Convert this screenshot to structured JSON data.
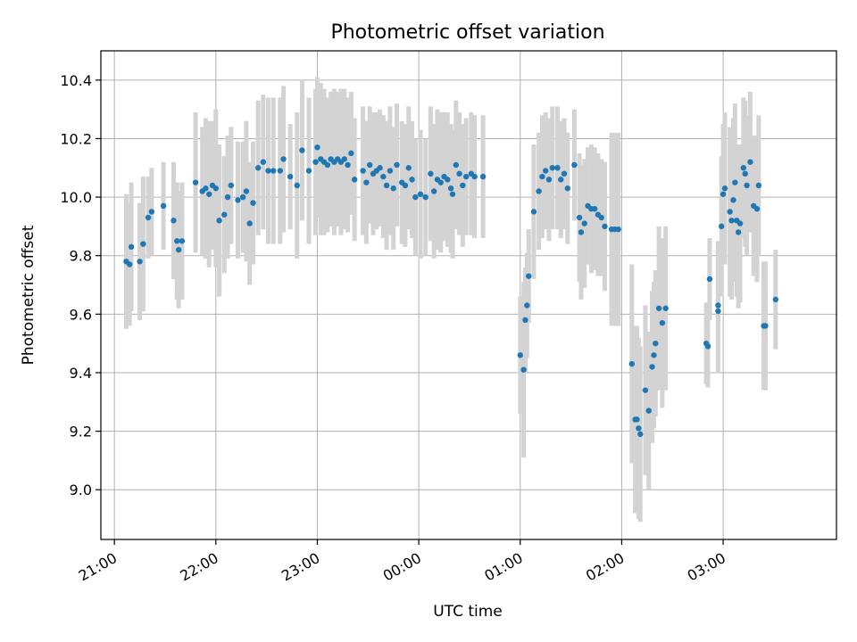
{
  "chart_data": {
    "type": "scatter",
    "title": "Photometric offset variation",
    "xlabel": "UTC time",
    "ylabel": "Photometric offset",
    "x_axis": {
      "kind": "time",
      "range": [
        "20:52",
        "28:07"
      ],
      "ticks": [
        {
          "t": "21:00",
          "label": "21:00"
        },
        {
          "t": "22:00",
          "label": "22:00"
        },
        {
          "t": "23:00",
          "label": "23:00"
        },
        {
          "t": "24:00",
          "label": "00:00"
        },
        {
          "t": "25:00",
          "label": "01:00"
        },
        {
          "t": "26:00",
          "label": "02:00"
        },
        {
          "t": "27:00",
          "label": "03:00"
        }
      ]
    },
    "y_axis": {
      "range": [
        8.83,
        10.5
      ],
      "ticks": [
        9.0,
        9.2,
        9.4,
        9.6,
        9.8,
        10.0,
        10.2,
        10.4
      ],
      "tick_labels": [
        "9.0",
        "9.2",
        "9.4",
        "9.6",
        "9.8",
        "10.0",
        "10.2",
        "10.4"
      ]
    },
    "grid": true,
    "marker_color": "#1f77b4",
    "errorbar_color": "#d3d3d3",
    "note_x_format": "x values are UTC times; hours past midnight are written as 24:xx, 25:xx, 26:xx, 27:xx",
    "series": [
      {
        "points": [
          {
            "x": "21:07",
            "y": 9.78,
            "err": 0.23
          },
          {
            "x": "21:09",
            "y": 9.77,
            "err": 0.21
          },
          {
            "x": "21:10",
            "y": 9.83,
            "err": 0.22
          },
          {
            "x": "21:15",
            "y": 9.78,
            "err": 0.2
          },
          {
            "x": "21:17",
            "y": 9.84,
            "err": 0.23
          },
          {
            "x": "21:20",
            "y": 9.93,
            "err": 0.14
          },
          {
            "x": "21:22",
            "y": 9.95,
            "err": 0.15
          },
          {
            "x": "21:29",
            "y": 9.97,
            "err": 0.15
          },
          {
            "x": "21:35",
            "y": 9.92,
            "err": 0.2
          },
          {
            "x": "21:37",
            "y": 9.85,
            "err": 0.2
          },
          {
            "x": "21:38",
            "y": 9.82,
            "err": 0.2
          },
          {
            "x": "21:40",
            "y": 9.85,
            "err": 0.2
          },
          {
            "x": "21:48",
            "y": 10.05,
            "err": 0.24
          },
          {
            "x": "21:52",
            "y": 10.02,
            "err": 0.22
          },
          {
            "x": "21:54",
            "y": 10.03,
            "err": 0.24
          },
          {
            "x": "21:56",
            "y": 10.01,
            "err": 0.25
          },
          {
            "x": "21:58",
            "y": 10.04,
            "err": 0.22
          },
          {
            "x": "22:00",
            "y": 10.03,
            "err": 0.27
          },
          {
            "x": "22:02",
            "y": 9.92,
            "err": 0.26
          },
          {
            "x": "22:05",
            "y": 9.94,
            "err": 0.2
          },
          {
            "x": "22:07",
            "y": 10.0,
            "err": 0.21
          },
          {
            "x": "22:09",
            "y": 10.04,
            "err": 0.2
          },
          {
            "x": "22:13",
            "y": 9.99,
            "err": 0.2
          },
          {
            "x": "22:16",
            "y": 10.0,
            "err": 0.19
          },
          {
            "x": "22:18",
            "y": 10.02,
            "err": 0.24
          },
          {
            "x": "22:20",
            "y": 9.91,
            "err": 0.21
          },
          {
            "x": "22:22",
            "y": 9.98,
            "err": 0.21
          },
          {
            "x": "22:25",
            "y": 10.1,
            "err": 0.23
          },
          {
            "x": "22:28",
            "y": 10.12,
            "err": 0.23
          },
          {
            "x": "22:31",
            "y": 10.09,
            "err": 0.25
          },
          {
            "x": "22:34",
            "y": 10.09,
            "err": 0.25
          },
          {
            "x": "22:38",
            "y": 10.09,
            "err": 0.25
          },
          {
            "x": "22:40",
            "y": 10.13,
            "err": 0.25
          },
          {
            "x": "22:44",
            "y": 10.07,
            "err": 0.18
          },
          {
            "x": "22:48",
            "y": 10.04,
            "err": 0.25
          },
          {
            "x": "22:51",
            "y": 10.16,
            "err": 0.24
          },
          {
            "x": "22:55",
            "y": 10.09,
            "err": 0.25
          },
          {
            "x": "22:59",
            "y": 10.12,
            "err": 0.25
          },
          {
            "x": "23:00",
            "y": 10.17,
            "err": 0.24
          },
          {
            "x": "23:02",
            "y": 10.13,
            "err": 0.26
          },
          {
            "x": "23:04",
            "y": 10.12,
            "err": 0.25
          },
          {
            "x": "23:06",
            "y": 10.11,
            "err": 0.23
          },
          {
            "x": "23:08",
            "y": 10.13,
            "err": 0.23
          },
          {
            "x": "23:10",
            "y": 10.12,
            "err": 0.25
          },
          {
            "x": "23:12",
            "y": 10.13,
            "err": 0.23
          },
          {
            "x": "23:14",
            "y": 10.12,
            "err": 0.25
          },
          {
            "x": "23:16",
            "y": 10.13,
            "err": 0.24
          },
          {
            "x": "23:18",
            "y": 10.11,
            "err": 0.23
          },
          {
            "x": "23:20",
            "y": 10.15,
            "err": 0.21
          },
          {
            "x": "23:22",
            "y": 10.06,
            "err": 0.21
          },
          {
            "x": "23:27",
            "y": 10.09,
            "err": 0.22
          },
          {
            "x": "23:29",
            "y": 10.05,
            "err": 0.21
          },
          {
            "x": "23:31",
            "y": 10.11,
            "err": 0.2
          },
          {
            "x": "23:33",
            "y": 10.08,
            "err": 0.21
          },
          {
            "x": "23:35",
            "y": 10.09,
            "err": 0.2
          },
          {
            "x": "23:37",
            "y": 10.1,
            "err": 0.2
          },
          {
            "x": "23:39",
            "y": 10.07,
            "err": 0.21
          },
          {
            "x": "23:41",
            "y": 10.04,
            "err": 0.22
          },
          {
            "x": "23:43",
            "y": 10.09,
            "err": 0.22
          },
          {
            "x": "23:45",
            "y": 10.03,
            "err": 0.21
          },
          {
            "x": "23:47",
            "y": 10.11,
            "err": 0.21
          },
          {
            "x": "23:50",
            "y": 10.05,
            "err": 0.21
          },
          {
            "x": "23:52",
            "y": 10.04,
            "err": 0.21
          },
          {
            "x": "23:54",
            "y": 10.1,
            "err": 0.21
          },
          {
            "x": "23:56",
            "y": 10.06,
            "err": 0.2
          },
          {
            "x": "23:58",
            "y": 10.0,
            "err": 0.2
          },
          {
            "x": "24:01",
            "y": 10.01,
            "err": 0.22
          },
          {
            "x": "24:04",
            "y": 10.0,
            "err": 0.2
          },
          {
            "x": "24:07",
            "y": 10.08,
            "err": 0.23
          },
          {
            "x": "24:09",
            "y": 10.02,
            "err": 0.23
          },
          {
            "x": "24:11",
            "y": 10.06,
            "err": 0.24
          },
          {
            "x": "24:13",
            "y": 10.05,
            "err": 0.24
          },
          {
            "x": "24:15",
            "y": 10.07,
            "err": 0.22
          },
          {
            "x": "24:17",
            "y": 10.06,
            "err": 0.23
          },
          {
            "x": "24:19",
            "y": 10.03,
            "err": 0.22
          },
          {
            "x": "24:20",
            "y": 10.01,
            "err": 0.22
          },
          {
            "x": "24:22",
            "y": 10.11,
            "err": 0.22
          },
          {
            "x": "24:24",
            "y": 10.08,
            "err": 0.21
          },
          {
            "x": "24:26",
            "y": 10.04,
            "err": 0.21
          },
          {
            "x": "24:28",
            "y": 10.07,
            "err": 0.2
          },
          {
            "x": "24:31",
            "y": 10.08,
            "err": 0.21
          },
          {
            "x": "24:33",
            "y": 10.07,
            "err": 0.21
          },
          {
            "x": "24:38",
            "y": 10.07,
            "err": 0.21
          },
          {
            "x": "25:00",
            "y": 9.46,
            "err": 0.2
          },
          {
            "x": "25:02",
            "y": 9.41,
            "err": 0.3
          },
          {
            "x": "25:03",
            "y": 9.58,
            "err": 0.18
          },
          {
            "x": "25:04",
            "y": 9.63,
            "err": 0.18
          },
          {
            "x": "25:05",
            "y": 9.73,
            "err": 0.16
          },
          {
            "x": "25:08",
            "y": 9.95,
            "err": 0.23
          },
          {
            "x": "25:11",
            "y": 10.02,
            "err": 0.2
          },
          {
            "x": "25:13",
            "y": 10.07,
            "err": 0.21
          },
          {
            "x": "25:15",
            "y": 10.09,
            "err": 0.2
          },
          {
            "x": "25:17",
            "y": 10.06,
            "err": 0.21
          },
          {
            "x": "25:19",
            "y": 10.1,
            "err": 0.21
          },
          {
            "x": "25:22",
            "y": 10.1,
            "err": 0.21
          },
          {
            "x": "25:24",
            "y": 10.06,
            "err": 0.2
          },
          {
            "x": "25:26",
            "y": 10.08,
            "err": 0.19
          },
          {
            "x": "25:28",
            "y": 10.03,
            "err": 0.19
          },
          {
            "x": "25:32",
            "y": 10.11,
            "err": 0.19
          },
          {
            "x": "25:35",
            "y": 9.93,
            "err": 0.22
          },
          {
            "x": "25:36",
            "y": 9.88,
            "err": 0.23
          },
          {
            "x": "25:38",
            "y": 9.91,
            "err": 0.22
          },
          {
            "x": "25:40",
            "y": 9.97,
            "err": 0.2
          },
          {
            "x": "25:42",
            "y": 9.96,
            "err": 0.22
          },
          {
            "x": "25:44",
            "y": 9.96,
            "err": 0.21
          },
          {
            "x": "25:46",
            "y": 9.94,
            "err": 0.21
          },
          {
            "x": "25:48",
            "y": 9.93,
            "err": 0.2
          },
          {
            "x": "25:50",
            "y": 9.9,
            "err": 0.22
          },
          {
            "x": "25:54",
            "y": 9.89,
            "err": 0.33
          },
          {
            "x": "25:56",
            "y": 9.89,
            "err": 0.33
          },
          {
            "x": "25:58",
            "y": 9.89,
            "err": 0.33
          },
          {
            "x": "26:06",
            "y": 9.43,
            "err": 0.34
          },
          {
            "x": "26:08",
            "y": 9.24,
            "err": 0.32
          },
          {
            "x": "26:09",
            "y": 9.24,
            "err": 0.32
          },
          {
            "x": "26:10",
            "y": 9.21,
            "err": 0.31
          },
          {
            "x": "26:11",
            "y": 9.19,
            "err": 0.3
          },
          {
            "x": "26:14",
            "y": 9.34,
            "err": 0.29
          },
          {
            "x": "26:16",
            "y": 9.27,
            "err": 0.27
          },
          {
            "x": "26:18",
            "y": 9.42,
            "err": 0.26
          },
          {
            "x": "26:19",
            "y": 9.46,
            "err": 0.25
          },
          {
            "x": "26:20",
            "y": 9.5,
            "err": 0.25
          },
          {
            "x": "26:22",
            "y": 9.62,
            "err": 0.28
          },
          {
            "x": "26:24",
            "y": 9.57,
            "err": 0.29
          },
          {
            "x": "26:26",
            "y": 9.62,
            "err": 0.28
          },
          {
            "x": "26:50",
            "y": 9.5,
            "err": 0.14
          },
          {
            "x": "26:51",
            "y": 9.49,
            "err": 0.14
          },
          {
            "x": "26:52",
            "y": 9.72,
            "err": 0.14
          },
          {
            "x": "26:57",
            "y": 9.61,
            "err": 0.21
          },
          {
            "x": "26:57",
            "y": 9.63,
            "err": 0.22
          },
          {
            "x": "26:59",
            "y": 9.9,
            "err": 0.24
          },
          {
            "x": "27:00",
            "y": 10.01,
            "err": 0.24
          },
          {
            "x": "27:01",
            "y": 10.03,
            "err": 0.26
          },
          {
            "x": "27:04",
            "y": 9.95,
            "err": 0.29
          },
          {
            "x": "27:05",
            "y": 9.92,
            "err": 0.27
          },
          {
            "x": "27:06",
            "y": 9.99,
            "err": 0.28
          },
          {
            "x": "27:07",
            "y": 10.05,
            "err": 0.27
          },
          {
            "x": "27:08",
            "y": 9.92,
            "err": 0.26
          },
          {
            "x": "27:09",
            "y": 9.88,
            "err": 0.26
          },
          {
            "x": "27:10",
            "y": 9.91,
            "err": 0.27
          },
          {
            "x": "27:12",
            "y": 10.1,
            "err": 0.24
          },
          {
            "x": "27:13",
            "y": 10.08,
            "err": 0.25
          },
          {
            "x": "27:14",
            "y": 10.04,
            "err": 0.24
          },
          {
            "x": "27:16",
            "y": 10.12,
            "err": 0.24
          },
          {
            "x": "27:18",
            "y": 9.97,
            "err": 0.24
          },
          {
            "x": "27:20",
            "y": 9.96,
            "err": 0.25
          },
          {
            "x": "27:21",
            "y": 10.04,
            "err": 0.24
          },
          {
            "x": "27:24",
            "y": 9.56,
            "err": 0.22
          },
          {
            "x": "27:25",
            "y": 9.56,
            "err": 0.22
          },
          {
            "x": "27:31",
            "y": 9.65,
            "err": 0.17
          }
        ]
      }
    ]
  }
}
